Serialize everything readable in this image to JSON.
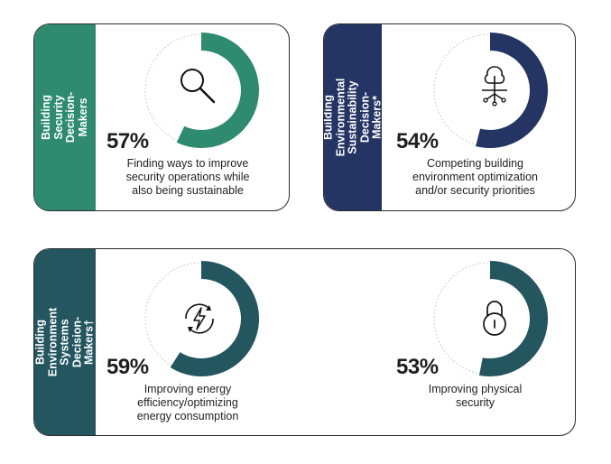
{
  "colors": {
    "green": "#2e8b6f",
    "navy": "#243463",
    "teal": "#24565f",
    "ring": "#bfbfbf"
  },
  "chart_data": [
    {
      "type": "pie",
      "group": "Building Security\nDecision-Makers",
      "values": [
        57
      ],
      "value_label": "57%",
      "description": "Finding ways to improve\nsecurity operations while\nalso being sustainable",
      "icon": "magnifier-icon",
      "color": "#2e8b6f"
    },
    {
      "type": "pie",
      "group": "Building Environmental\nSustainability\nDecision-Makers*",
      "values": [
        54
      ],
      "value_label": "54%",
      "description": "Competing building\nenvironment optimization\nand/or security priorities",
      "icon": "tree-circuit-icon",
      "color": "#243463"
    },
    {
      "type": "pie",
      "group": "Building\nEnvironment Systems\nDecision-Makers†",
      "values": [
        59
      ],
      "value_label": "59%",
      "description": "Improving energy\nefficiency/optimizing\nenergy consumption",
      "icon": "energy-bolt-icon",
      "color": "#24565f"
    },
    {
      "type": "pie",
      "group": "Building\nEnvironment Systems\nDecision-Makers†",
      "values": [
        53
      ],
      "value_label": "53%",
      "description": "Improving physical\nsecurity",
      "icon": "padlock-icon",
      "color": "#24565f"
    }
  ]
}
